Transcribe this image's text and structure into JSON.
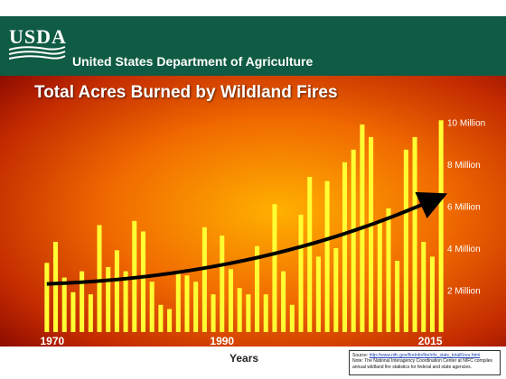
{
  "header": {
    "logo_text": "USDA",
    "department": "United States Department of Agriculture"
  },
  "colors": {
    "usda_green": "#0f5b43",
    "bar_fill": "#ffff33",
    "trend_arrow": "#000000",
    "background_center": "#ffb000",
    "background_edge": "#8a0a00"
  },
  "chart_data": {
    "type": "bar",
    "title": "Total Acres Burned by Wildland Fires",
    "xlabel": "Years",
    "ylabel": "",
    "ylim": [
      0,
      10500000
    ],
    "grid": false,
    "legend": "none",
    "x_tick_labels": [
      "1970",
      "1990",
      "2015"
    ],
    "y_tick_labels": [
      "2 Million",
      "4 Million",
      "6 Million",
      "8 Million",
      "10 Million"
    ],
    "y_tick_values": [
      2000000,
      4000000,
      6000000,
      8000000,
      10000000
    ],
    "categories": [
      "1970",
      "1971",
      "1972",
      "1973",
      "1974",
      "1975",
      "1976",
      "1977",
      "1978",
      "1979",
      "1980",
      "1981",
      "1982",
      "1983",
      "1984",
      "1985",
      "1986",
      "1987",
      "1988",
      "1989",
      "1990",
      "1991",
      "1992",
      "1993",
      "1994",
      "1995",
      "1996",
      "1997",
      "1998",
      "1999",
      "2000",
      "2001",
      "2002",
      "2003",
      "2004",
      "2005",
      "2006",
      "2007",
      "2008",
      "2009",
      "2010",
      "2011",
      "2012",
      "2013",
      "2014",
      "2015"
    ],
    "values": [
      3300000,
      4300000,
      2600000,
      1900000,
      2900000,
      1800000,
      5100000,
      3100000,
      3900000,
      2900000,
      5300000,
      4800000,
      2400000,
      1300000,
      1100000,
      2900000,
      2700000,
      2400000,
      5000000,
      1800000,
      4600000,
      3000000,
      2100000,
      1800000,
      4100000,
      1800000,
      6100000,
      2900000,
      1300000,
      5600000,
      7400000,
      3600000,
      7200000,
      4000000,
      8100000,
      8700000,
      9900000,
      9300000,
      5300000,
      5900000,
      3400000,
      8700000,
      9300000,
      4300000,
      3600000,
      10100000
    ],
    "trend": {
      "type": "arrow",
      "start": {
        "x": "1970",
        "y": 2300000
      },
      "end": {
        "x": "2015",
        "y": 6400000
      }
    },
    "source_note": {
      "source_label": "Source:",
      "source_link": "http://www.nifc.gov/fireInfo/fireInfo_stats_totalFires.html",
      "note": "Note: The National Interagency Coordination Center at NIFC compiles annual wildland fire statistics for federal and state agencies."
    }
  }
}
